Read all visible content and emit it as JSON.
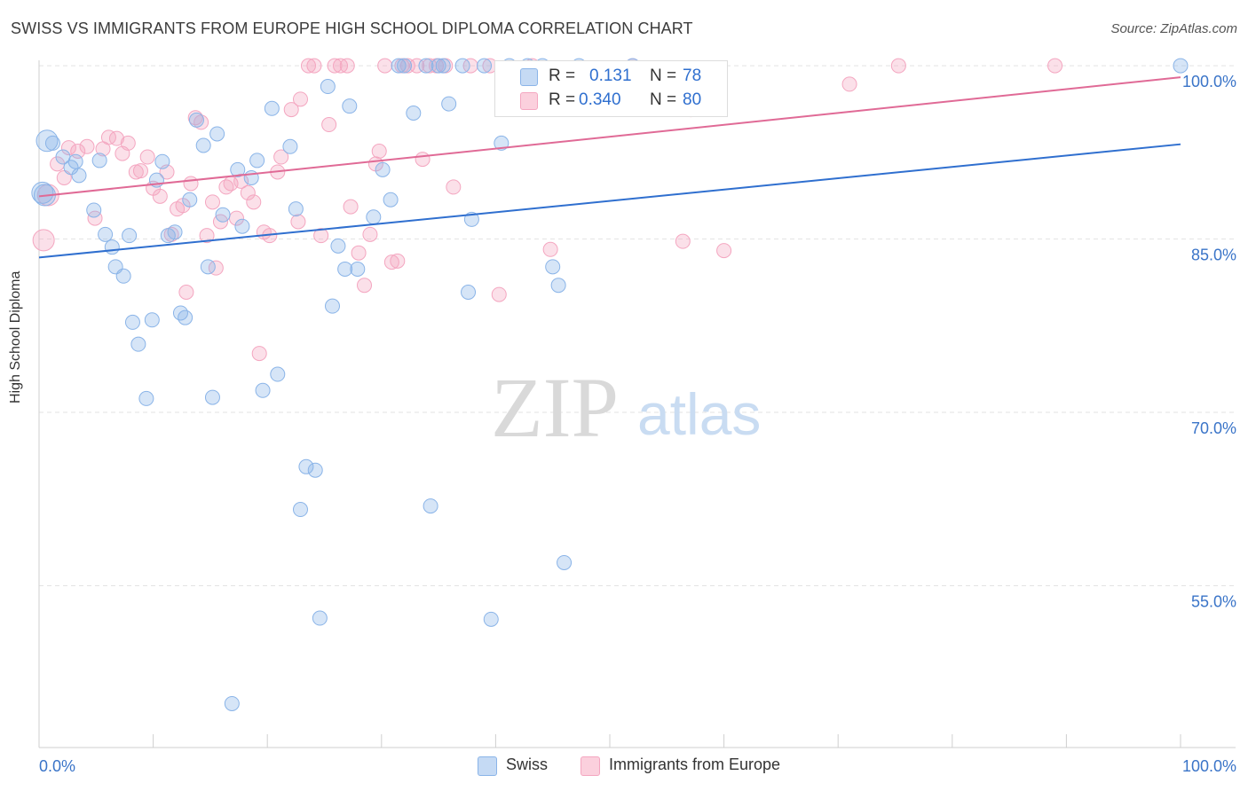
{
  "header": {
    "title": "SWISS VS IMMIGRANTS FROM EUROPE HIGH SCHOOL DIPLOMA CORRELATION CHART",
    "source": "Source: ZipAtlas.com"
  },
  "watermark": {
    "zip": "ZIP",
    "atlas": "atlas"
  },
  "legend": {
    "swiss": {
      "r_label": "R =",
      "r_value": "0.131",
      "n_label": "N =",
      "n_value": "78",
      "color": "#8ab4e8"
    },
    "europe": {
      "r_label": "R =",
      "r_value": "0.340",
      "n_label": "N =",
      "n_value": "80",
      "color": "#f4a6c0"
    }
  },
  "bottom_legend": {
    "swiss": "Swiss",
    "europe": "Immigrants from Europe"
  },
  "chart_data": {
    "type": "scatter",
    "title": "SWISS VS IMMIGRANTS FROM EUROPE HIGH SCHOOL DIPLOMA CORRELATION CHART",
    "xlabel": "",
    "ylabel": "High School Diploma",
    "xlim": [
      0,
      100
    ],
    "ylim": [
      41,
      102
    ],
    "x_tick_labels": [
      "0.0%",
      "100.0%"
    ],
    "y_ticks": [
      100,
      85,
      70,
      55
    ],
    "y_tick_labels": [
      "100.0%",
      "85.0%",
      "70.0%",
      "55.0%"
    ],
    "grid": true,
    "colors": {
      "swiss": "#8ab4e8",
      "swiss_line": "#2f6fcf",
      "europe": "#f4a6c0",
      "europe_line": "#e06a96",
      "tick_label": "#3a74c8"
    },
    "series": [
      {
        "name": "Swiss",
        "trend": {
          "x": [
            0,
            100
          ],
          "y": [
            83.4,
            93.2
          ]
        },
        "points": [
          [
            0.5,
            88.8
          ],
          [
            0.7,
            93.5
          ],
          [
            1.2,
            93.3
          ],
          [
            2.1,
            92.1
          ],
          [
            2.8,
            91.2
          ],
          [
            3.2,
            91.7
          ],
          [
            3.5,
            90.5
          ],
          [
            5.3,
            91.8
          ],
          [
            4.8,
            87.5
          ],
          [
            5.8,
            85.4
          ],
          [
            6.4,
            84.3
          ],
          [
            6.7,
            82.6
          ],
          [
            7.4,
            81.8
          ],
          [
            7.9,
            85.3
          ],
          [
            8.2,
            77.8
          ],
          [
            8.7,
            75.9
          ],
          [
            9.4,
            71.2
          ],
          [
            9.9,
            78.0
          ],
          [
            10.3,
            90.1
          ],
          [
            10.8,
            91.7
          ],
          [
            11.3,
            85.3
          ],
          [
            11.9,
            85.6
          ],
          [
            12.4,
            78.6
          ],
          [
            12.8,
            78.2
          ],
          [
            13.2,
            88.4
          ],
          [
            13.8,
            95.3
          ],
          [
            14.4,
            93.1
          ],
          [
            14.8,
            82.6
          ],
          [
            15.6,
            94.1
          ],
          [
            15.2,
            71.3
          ],
          [
            16.1,
            87.1
          ],
          [
            16.9,
            44.8
          ],
          [
            17.4,
            91.0
          ],
          [
            17.8,
            86.1
          ],
          [
            18.6,
            90.3
          ],
          [
            19.1,
            91.8
          ],
          [
            19.6,
            71.9
          ],
          [
            20.4,
            96.3
          ],
          [
            20.9,
            73.3
          ],
          [
            22.0,
            93.0
          ],
          [
            22.5,
            87.6
          ],
          [
            22.9,
            61.6
          ],
          [
            23.4,
            65.3
          ],
          [
            24.2,
            65.0
          ],
          [
            24.6,
            52.2
          ],
          [
            25.3,
            98.2
          ],
          [
            25.7,
            79.2
          ],
          [
            26.2,
            84.4
          ],
          [
            26.8,
            82.4
          ],
          [
            27.2,
            96.5
          ],
          [
            27.9,
            82.4
          ],
          [
            29.3,
            86.9
          ],
          [
            30.1,
            91.0
          ],
          [
            30.8,
            88.4
          ],
          [
            31.5,
            100.0
          ],
          [
            32.0,
            100.0
          ],
          [
            32.8,
            95.9
          ],
          [
            33.9,
            100.0
          ],
          [
            34.3,
            61.9
          ],
          [
            35.0,
            100.0
          ],
          [
            35.4,
            100.0
          ],
          [
            35.9,
            96.7
          ],
          [
            37.1,
            100.0
          ],
          [
            37.6,
            80.4
          ],
          [
            37.9,
            86.7
          ],
          [
            39.0,
            100.0
          ],
          [
            39.6,
            52.1
          ],
          [
            40.5,
            93.3
          ],
          [
            41.2,
            100.0
          ],
          [
            42.8,
            100.0
          ],
          [
            44.1,
            100.0
          ],
          [
            45.0,
            82.6
          ],
          [
            45.5,
            81.0
          ],
          [
            46.0,
            57.0
          ],
          [
            47.3,
            100.0
          ],
          [
            52.0,
            100.0
          ],
          [
            100.0,
            100.0
          ],
          [
            0.3,
            89.0
          ]
        ]
      },
      {
        "name": "Immigrants from Europe",
        "trend": {
          "x": [
            0,
            100
          ],
          "y": [
            88.7,
            99.0
          ]
        },
        "points": [
          [
            0.4,
            84.9
          ],
          [
            0.8,
            88.8
          ],
          [
            1.6,
            91.5
          ],
          [
            2.2,
            90.3
          ],
          [
            2.6,
            92.9
          ],
          [
            3.4,
            92.6
          ],
          [
            4.2,
            93.0
          ],
          [
            4.9,
            86.8
          ],
          [
            5.6,
            92.8
          ],
          [
            6.1,
            93.8
          ],
          [
            6.8,
            93.7
          ],
          [
            7.3,
            92.4
          ],
          [
            7.8,
            93.3
          ],
          [
            8.5,
            90.8
          ],
          [
            8.9,
            90.9
          ],
          [
            9.5,
            92.1
          ],
          [
            10.0,
            89.4
          ],
          [
            10.6,
            88.7
          ],
          [
            11.2,
            90.8
          ],
          [
            11.6,
            85.4
          ],
          [
            12.1,
            87.6
          ],
          [
            12.6,
            87.9
          ],
          [
            12.9,
            80.4
          ],
          [
            13.3,
            89.8
          ],
          [
            13.7,
            95.5
          ],
          [
            14.2,
            95.1
          ],
          [
            14.7,
            85.3
          ],
          [
            15.2,
            88.2
          ],
          [
            15.5,
            82.5
          ],
          [
            15.9,
            86.5
          ],
          [
            16.4,
            89.5
          ],
          [
            16.8,
            89.8
          ],
          [
            17.3,
            86.8
          ],
          [
            17.7,
            90.0
          ],
          [
            18.3,
            89.0
          ],
          [
            18.8,
            88.2
          ],
          [
            19.3,
            75.1
          ],
          [
            19.7,
            85.6
          ],
          [
            20.2,
            85.3
          ],
          [
            20.9,
            90.8
          ],
          [
            21.2,
            92.1
          ],
          [
            22.1,
            96.2
          ],
          [
            22.7,
            86.5
          ],
          [
            22.9,
            97.1
          ],
          [
            23.6,
            100.0
          ],
          [
            24.1,
            100.0
          ],
          [
            24.7,
            85.3
          ],
          [
            25.4,
            94.9
          ],
          [
            25.9,
            100.0
          ],
          [
            26.4,
            100.0
          ],
          [
            27.0,
            100.0
          ],
          [
            27.3,
            87.8
          ],
          [
            28.0,
            83.8
          ],
          [
            28.5,
            81.0
          ],
          [
            29.0,
            85.4
          ],
          [
            29.5,
            91.5
          ],
          [
            29.8,
            92.6
          ],
          [
            30.3,
            100.0
          ],
          [
            30.9,
            83.0
          ],
          [
            31.4,
            83.1
          ],
          [
            31.8,
            100.0
          ],
          [
            32.3,
            100.0
          ],
          [
            33.1,
            100.0
          ],
          [
            33.6,
            91.9
          ],
          [
            34.2,
            100.0
          ],
          [
            34.8,
            100.0
          ],
          [
            35.6,
            100.0
          ],
          [
            36.3,
            89.5
          ],
          [
            37.8,
            100.0
          ],
          [
            39.5,
            100.0
          ],
          [
            40.3,
            80.2
          ],
          [
            43.2,
            100.0
          ],
          [
            44.8,
            84.1
          ],
          [
            52.0,
            100.0
          ],
          [
            56.4,
            84.8
          ],
          [
            57.1,
            96.2
          ],
          [
            60.0,
            84.0
          ],
          [
            71.0,
            98.4
          ],
          [
            75.3,
            100.0
          ],
          [
            89.0,
            100.0
          ]
        ]
      }
    ]
  }
}
